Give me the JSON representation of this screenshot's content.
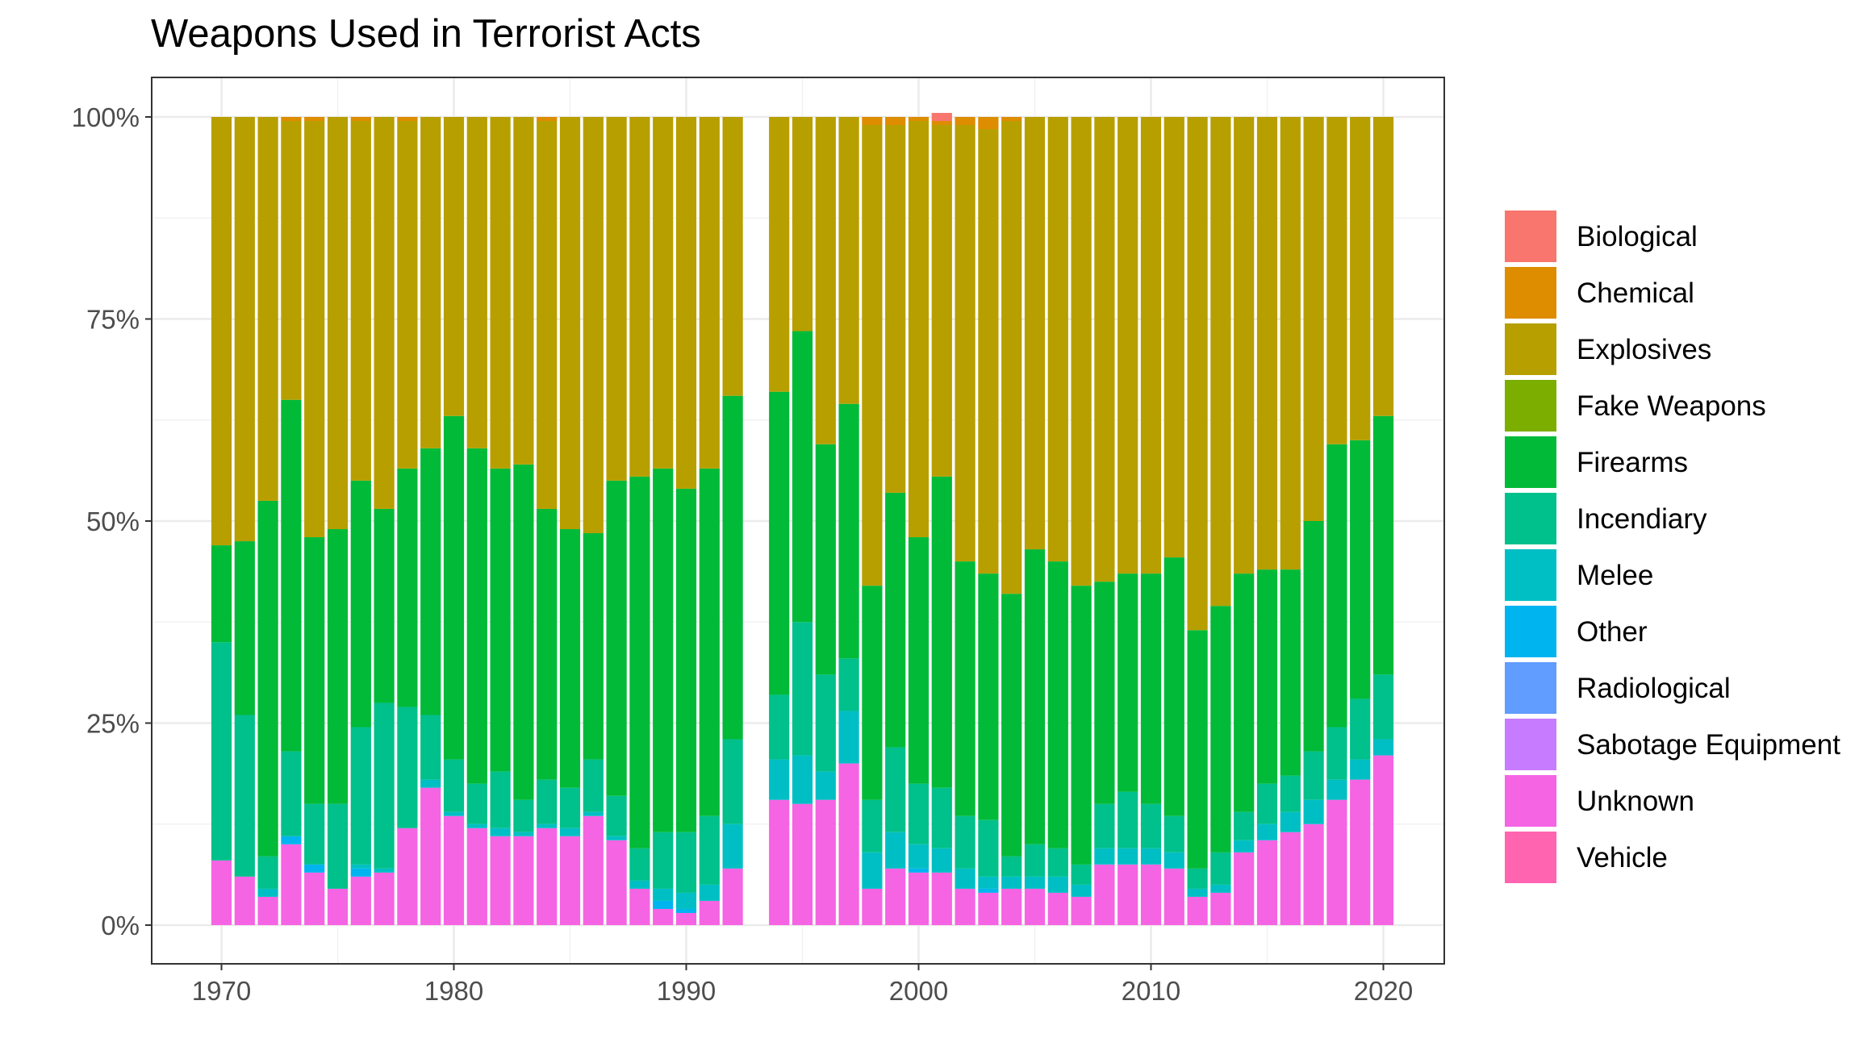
{
  "chart_data": {
    "type": "bar",
    "stacked": "percent",
    "title": "Weapons Used in Terrorist Acts",
    "xlabel": "",
    "ylabel": "",
    "x_ticks": [
      "1970",
      "1980",
      "1990",
      "2000",
      "2010",
      "2020"
    ],
    "y_ticks": [
      "0%",
      "25%",
      "50%",
      "75%",
      "100%"
    ],
    "ylim": [
      0,
      1
    ],
    "grid": true,
    "legend_position": "right",
    "stack_order": [
      "Unknown",
      "Sabotage Equipment",
      "Radiological",
      "Other",
      "Melee",
      "Incendiary",
      "Firearms",
      "Fake Weapons",
      "Explosives",
      "Chemical",
      "Biological",
      "Vehicle"
    ],
    "legend": [
      {
        "name": "Biological",
        "color": "#F8766D"
      },
      {
        "name": "Chemical",
        "color": "#DE8C00"
      },
      {
        "name": "Explosives",
        "color": "#B79F00"
      },
      {
        "name": "Fake Weapons",
        "color": "#7CAE00"
      },
      {
        "name": "Firearms",
        "color": "#00BA38"
      },
      {
        "name": "Incendiary",
        "color": "#00C08B"
      },
      {
        "name": "Melee",
        "color": "#00BFC4"
      },
      {
        "name": "Other",
        "color": "#00B4F0"
      },
      {
        "name": "Radiological",
        "color": "#619CFF"
      },
      {
        "name": "Sabotage Equipment",
        "color": "#C77CFF"
      },
      {
        "name": "Unknown",
        "color": "#F564E3"
      },
      {
        "name": "Vehicle",
        "color": "#FF64B0"
      }
    ],
    "bars": [
      {
        "year": 1970,
        "Unknown": 0.08,
        "Melee": 0.0,
        "Incendiary": 0.27,
        "Firearms": 0.12,
        "Explosives": 0.53,
        "Chemical": 0.0
      },
      {
        "year": 1971,
        "Unknown": 0.06,
        "Melee": 0.0,
        "Incendiary": 0.2,
        "Firearms": 0.215,
        "Explosives": 0.525
      },
      {
        "year": 1972,
        "Unknown": 0.035,
        "Melee": 0.01,
        "Incendiary": 0.04,
        "Firearms": 0.44,
        "Explosives": 0.475
      },
      {
        "year": 1973,
        "Unknown": 0.1,
        "Other": 0.01,
        "Incendiary": 0.105,
        "Firearms": 0.435,
        "Explosives": 0.345,
        "Chemical": 0.005
      },
      {
        "year": 1974,
        "Unknown": 0.065,
        "Other": 0.01,
        "Incendiary": 0.075,
        "Firearms": 0.33,
        "Explosives": 0.515,
        "Chemical": 0.005
      },
      {
        "year": 1975,
        "Unknown": 0.045,
        "Incendiary": 0.105,
        "Firearms": 0.34,
        "Explosives": 0.51
      },
      {
        "year": 1976,
        "Unknown": 0.06,
        "Other": 0.01,
        "Melee": 0.005,
        "Incendiary": 0.17,
        "Firearms": 0.305,
        "Explosives": 0.445,
        "Chemical": 0.005
      },
      {
        "year": 1977,
        "Unknown": 0.065,
        "Melee": 0.005,
        "Incendiary": 0.205,
        "Firearms": 0.24,
        "Explosives": 0.485
      },
      {
        "year": 1978,
        "Unknown": 0.12,
        "Incendiary": 0.15,
        "Firearms": 0.295,
        "Explosives": 0.43,
        "Chemical": 0.005
      },
      {
        "year": 1979,
        "Unknown": 0.17,
        "Melee": 0.01,
        "Incendiary": 0.08,
        "Firearms": 0.33,
        "Explosives": 0.41
      },
      {
        "year": 1980,
        "Unknown": 0.135,
        "Melee": 0.005,
        "Incendiary": 0.065,
        "Firearms": 0.425,
        "Explosives": 0.37
      },
      {
        "year": 1981,
        "Unknown": 0.12,
        "Melee": 0.005,
        "Incendiary": 0.05,
        "Firearms": 0.415,
        "Explosives": 0.41
      },
      {
        "year": 1982,
        "Unknown": 0.11,
        "Melee": 0.01,
        "Incendiary": 0.07,
        "Firearms": 0.375,
        "Explosives": 0.435
      },
      {
        "year": 1983,
        "Unknown": 0.11,
        "Melee": 0.005,
        "Incendiary": 0.04,
        "Firearms": 0.415,
        "Explosives": 0.43
      },
      {
        "year": 1984,
        "Unknown": 0.12,
        "Melee": 0.005,
        "Incendiary": 0.055,
        "Firearms": 0.335,
        "Explosives": 0.48,
        "Chemical": 0.005
      },
      {
        "year": 1985,
        "Unknown": 0.11,
        "Melee": 0.01,
        "Incendiary": 0.05,
        "Firearms": 0.32,
        "Explosives": 0.51
      },
      {
        "year": 1986,
        "Unknown": 0.135,
        "Melee": 0.005,
        "Incendiary": 0.065,
        "Firearms": 0.28,
        "Explosives": 0.515
      },
      {
        "year": 1987,
        "Unknown": 0.105,
        "Melee": 0.005,
        "Incendiary": 0.05,
        "Firearms": 0.39,
        "Explosives": 0.45
      },
      {
        "year": 1988,
        "Unknown": 0.045,
        "Melee": 0.01,
        "Incendiary": 0.04,
        "Firearms": 0.46,
        "Explosives": 0.445
      },
      {
        "year": 1989,
        "Unknown": 0.02,
        "Other": 0.01,
        "Melee": 0.015,
        "Incendiary": 0.07,
        "Firearms": 0.45,
        "Explosives": 0.435
      },
      {
        "year": 1990,
        "Unknown": 0.015,
        "Other": 0.005,
        "Melee": 0.02,
        "Incendiary": 0.075,
        "Firearms": 0.425,
        "Explosives": 0.46
      },
      {
        "year": 1991,
        "Unknown": 0.03,
        "Melee": 0.02,
        "Incendiary": 0.085,
        "Firearms": 0.43,
        "Explosives": 0.435
      },
      {
        "year": 1992,
        "Unknown": 0.07,
        "Melee": 0.055,
        "Incendiary": 0.105,
        "Firearms": 0.425,
        "Explosives": 0.345
      },
      {
        "year": 1994,
        "Unknown": 0.155,
        "Melee": 0.05,
        "Incendiary": 0.08,
        "Firearms": 0.375,
        "Explosives": 0.34
      },
      {
        "year": 1995,
        "Unknown": 0.15,
        "Melee": 0.06,
        "Incendiary": 0.165,
        "Firearms": 0.36,
        "Explosives": 0.265
      },
      {
        "year": 1996,
        "Unknown": 0.155,
        "Melee": 0.035,
        "Incendiary": 0.12,
        "Firearms": 0.285,
        "Explosives": 0.405
      },
      {
        "year": 1997,
        "Unknown": 0.2,
        "Melee": 0.065,
        "Incendiary": 0.065,
        "Firearms": 0.315,
        "Explosives": 0.355
      },
      {
        "year": 1998,
        "Unknown": 0.045,
        "Melee": 0.045,
        "Incendiary": 0.065,
        "Firearms": 0.265,
        "Explosives": 0.57,
        "Chemical": 0.01
      },
      {
        "year": 1999,
        "Unknown": 0.07,
        "Melee": 0.045,
        "Incendiary": 0.105,
        "Firearms": 0.315,
        "Explosives": 0.455,
        "Chemical": 0.01
      },
      {
        "year": 2000,
        "Unknown": 0.065,
        "Other": 0.005,
        "Melee": 0.03,
        "Incendiary": 0.075,
        "Firearms": 0.305,
        "Explosives": 0.515,
        "Chemical": 0.005
      },
      {
        "year": 2001,
        "Unknown": 0.065,
        "Melee": 0.03,
        "Incendiary": 0.075,
        "Firearms": 0.385,
        "Explosives": 0.435,
        "Chemical": 0.005,
        "Biological": 0.01
      },
      {
        "year": 2002,
        "Unknown": 0.045,
        "Melee": 0.025,
        "Incendiary": 0.065,
        "Firearms": 0.315,
        "Explosives": 0.54,
        "Chemical": 0.01
      },
      {
        "year": 2003,
        "Unknown": 0.04,
        "Other": 0.005,
        "Melee": 0.015,
        "Incendiary": 0.07,
        "Firearms": 0.305,
        "Explosives": 0.55,
        "Chemical": 0.015
      },
      {
        "year": 2004,
        "Unknown": 0.045,
        "Melee": 0.015,
        "Incendiary": 0.025,
        "Firearms": 0.325,
        "Explosives": 0.585,
        "Chemical": 0.005
      },
      {
        "year": 2005,
        "Unknown": 0.045,
        "Melee": 0.015,
        "Incendiary": 0.04,
        "Firearms": 0.365,
        "Explosives": 0.535
      },
      {
        "year": 2006,
        "Unknown": 0.04,
        "Melee": 0.02,
        "Incendiary": 0.035,
        "Firearms": 0.355,
        "Explosives": 0.55
      },
      {
        "year": 2007,
        "Unknown": 0.035,
        "Melee": 0.015,
        "Incendiary": 0.025,
        "Firearms": 0.345,
        "Explosives": 0.58
      },
      {
        "year": 2008,
        "Unknown": 0.075,
        "Melee": 0.02,
        "Incendiary": 0.055,
        "Firearms": 0.275,
        "Explosives": 0.575
      },
      {
        "year": 2009,
        "Unknown": 0.075,
        "Melee": 0.02,
        "Incendiary": 0.07,
        "Firearms": 0.27,
        "Explosives": 0.565
      },
      {
        "year": 2010,
        "Unknown": 0.075,
        "Melee": 0.02,
        "Incendiary": 0.055,
        "Firearms": 0.285,
        "Explosives": 0.565
      },
      {
        "year": 2011,
        "Unknown": 0.07,
        "Melee": 0.02,
        "Incendiary": 0.045,
        "Firearms": 0.32,
        "Explosives": 0.545
      },
      {
        "year": 2012,
        "Unknown": 0.035,
        "Melee": 0.01,
        "Incendiary": 0.025,
        "Firearms": 0.295,
        "Explosives": 0.635
      },
      {
        "year": 2013,
        "Unknown": 0.04,
        "Melee": 0.01,
        "Incendiary": 0.04,
        "Firearms": 0.305,
        "Explosives": 0.605
      },
      {
        "year": 2014,
        "Unknown": 0.09,
        "Melee": 0.015,
        "Incendiary": 0.035,
        "Firearms": 0.295,
        "Explosives": 0.565
      },
      {
        "year": 2015,
        "Unknown": 0.105,
        "Melee": 0.02,
        "Incendiary": 0.05,
        "Firearms": 0.265,
        "Explosives": 0.56
      },
      {
        "year": 2016,
        "Unknown": 0.115,
        "Melee": 0.025,
        "Incendiary": 0.045,
        "Firearms": 0.255,
        "Explosives": 0.56
      },
      {
        "year": 2017,
        "Unknown": 0.125,
        "Melee": 0.03,
        "Incendiary": 0.06,
        "Firearms": 0.285,
        "Explosives": 0.5
      },
      {
        "year": 2018,
        "Unknown": 0.155,
        "Melee": 0.025,
        "Incendiary": 0.065,
        "Firearms": 0.35,
        "Explosives": 0.405
      },
      {
        "year": 2019,
        "Unknown": 0.18,
        "Melee": 0.025,
        "Incendiary": 0.075,
        "Firearms": 0.32,
        "Explosives": 0.4
      },
      {
        "year": 2020,
        "Unknown": 0.21,
        "Melee": 0.02,
        "Incendiary": 0.08,
        "Firearms": 0.32,
        "Explosives": 0.37
      }
    ]
  }
}
